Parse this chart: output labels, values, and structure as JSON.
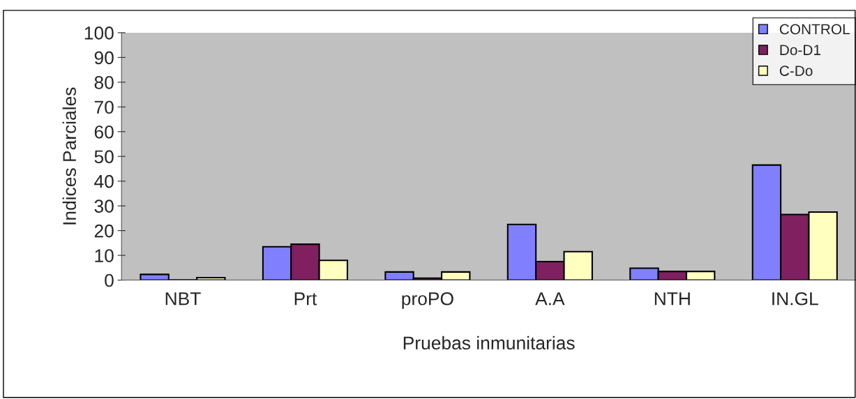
{
  "chart_data": {
    "type": "bar",
    "xlabel": "Pruebas inmunitarias",
    "ylabel": "Indices Parciales",
    "categories": [
      "NBT",
      "Prt",
      "proPO",
      "A.A",
      "NTH",
      "IN.GL"
    ],
    "series": [
      {
        "name": "CONTROL",
        "color": "#8080ff",
        "values": [
          2.3,
          13.5,
          3.3,
          22.5,
          4.8,
          46.5
        ]
      },
      {
        "name": "Do-D1",
        "color": "#802060",
        "values": [
          0.1,
          14.5,
          0.8,
          7.5,
          3.5,
          26.5
        ]
      },
      {
        "name": "C-Do",
        "color": "#ffffc0",
        "values": [
          1,
          8,
          3.3,
          11.5,
          3.5,
          27.5
        ]
      }
    ],
    "ylim": [
      0,
      100
    ],
    "yticks": [
      0,
      10,
      20,
      30,
      40,
      50,
      60,
      70,
      80,
      90,
      100
    ],
    "grid": false,
    "legend": "top right"
  }
}
